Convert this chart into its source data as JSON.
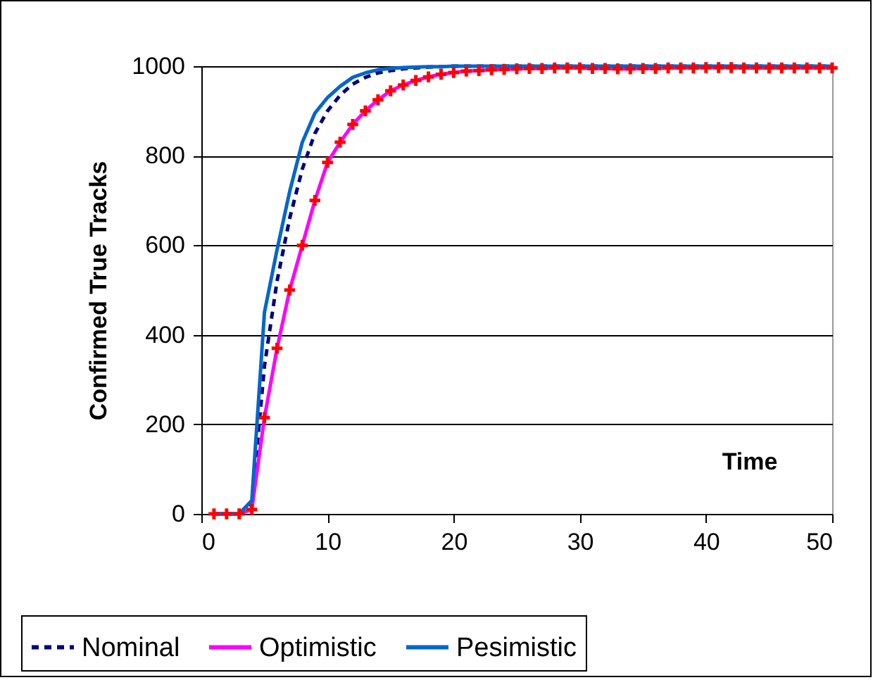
{
  "chart_data": {
    "type": "line",
    "xlabel": "Time",
    "ylabel": "Confirmed True Tracks",
    "x": [
      1,
      2,
      3,
      4,
      5,
      6,
      7,
      8,
      9,
      10,
      11,
      12,
      13,
      14,
      15,
      16,
      17,
      18,
      19,
      20,
      21,
      22,
      23,
      24,
      25,
      26,
      27,
      28,
      29,
      30,
      31,
      32,
      33,
      34,
      35,
      36,
      37,
      38,
      39,
      40,
      41,
      42,
      43,
      44,
      45,
      46,
      47,
      48,
      49,
      50
    ],
    "series": [
      {
        "name": "Nominal",
        "color": "#000080",
        "line_style": "dashed",
        "marker": "none",
        "values": [
          0,
          0,
          0,
          20,
          330,
          520,
          660,
          770,
          850,
          900,
          935,
          960,
          975,
          985,
          990,
          994,
          996,
          998,
          999,
          1000,
          1000,
          1000,
          1000,
          1000,
          1000,
          1000,
          1000,
          1000,
          1000,
          1000,
          1000,
          1000,
          1000,
          1000,
          1000,
          1000,
          1000,
          1000,
          1000,
          1000,
          1000,
          1000,
          1000,
          1000,
          1000,
          1000,
          1000,
          1000,
          1000,
          1000
        ]
      },
      {
        "name": "Optimistic",
        "color": "#ff00ff",
        "line_style": "solid",
        "marker": "cross",
        "values": [
          0,
          0,
          0,
          10,
          215,
          370,
          500,
          600,
          700,
          785,
          830,
          870,
          900,
          925,
          945,
          958,
          968,
          976,
          982,
          986,
          989,
          990,
          992,
          993,
          994,
          995,
          995,
          996,
          996,
          996,
          995,
          995,
          994,
          994,
          995,
          995,
          996,
          996,
          996,
          997,
          997,
          997,
          996,
          996,
          996,
          996,
          996,
          996,
          996,
          996
        ]
      },
      {
        "name": "Pesimistic",
        "color": "#0066cc",
        "line_style": "solid",
        "marker": "none",
        "values": [
          0,
          0,
          0,
          30,
          450,
          590,
          720,
          830,
          895,
          930,
          955,
          975,
          985,
          992,
          995,
          997,
          998,
          999,
          999,
          1000,
          1000,
          1000,
          1000,
          1000,
          1000,
          1000,
          1000,
          1000,
          1000,
          1000,
          1000,
          1000,
          1000,
          1000,
          1000,
          1000,
          1000,
          1000,
          1000,
          1000,
          1000,
          1000,
          1000,
          1000,
          1000,
          1000,
          1000,
          1000,
          1000,
          1000
        ]
      }
    ],
    "xlim": [
      0,
      50
    ],
    "xticks": [
      0,
      10,
      20,
      30,
      40,
      50
    ],
    "ylim": [
      0,
      1000
    ],
    "yticks": [
      0,
      200,
      400,
      600,
      800,
      1000
    ],
    "grid": "y",
    "legend": "bottom"
  }
}
